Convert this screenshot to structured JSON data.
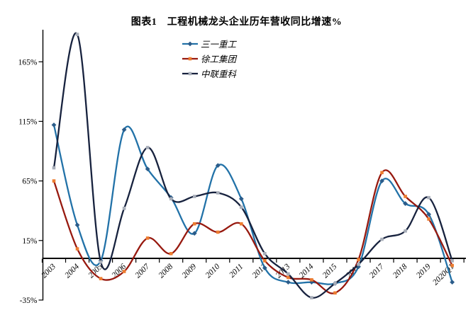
{
  "title": "图表1　工程机械龙头企业历年营收同比增速%",
  "chart_data": {
    "type": "line",
    "title": "图表1　工程机械龙头企业历年营收同比增速%",
    "smoothed_lines": true,
    "grid": false,
    "legend_position": "top-center",
    "xlabel": "",
    "ylabel": "",
    "ylim": [
      -35,
      192
    ],
    "y_ticks": [
      165,
      115,
      65,
      15,
      -35
    ],
    "y_tick_labels": [
      "165%",
      "115%",
      "65%",
      "15%",
      "-35%"
    ],
    "categories": [
      "2003",
      "2004",
      "2005",
      "2006",
      "2007",
      "2008",
      "2009",
      "2010",
      "2011",
      "2012",
      "2013",
      "2014",
      "2015",
      "2016",
      "2017",
      "2018",
      "2019",
      "2020Q1"
    ],
    "series": [
      {
        "id": "sany",
        "name": "三一重工",
        "line_color": "#2272A8",
        "marker_color": "#2B5C8A",
        "marker": "diamond",
        "values": [
          112,
          28,
          -2,
          108,
          75,
          51,
          21,
          78,
          50,
          -8,
          -20,
          -20,
          -21,
          -7,
          65,
          46,
          37,
          -20
        ]
      },
      {
        "id": "xcmg",
        "name": "徐工集团",
        "line_color": "#97190F",
        "marker_color": "#ED7D31",
        "marker": "square",
        "values": [
          65,
          8,
          -17,
          -11,
          17,
          4,
          29,
          22,
          29,
          -2,
          -16,
          -18,
          -29,
          -1,
          72,
          52,
          33,
          -6
        ]
      },
      {
        "id": "zoomlion",
        "name": "中联重科",
        "line_color": "#17223E",
        "marker_color": "#A8AEB9",
        "marker": "square",
        "values": [
          76,
          188,
          -3,
          42,
          93,
          50,
          52,
          55,
          43,
          4,
          -13,
          -33,
          -21,
          -5,
          16,
          23,
          51,
          -2
        ]
      }
    ]
  }
}
